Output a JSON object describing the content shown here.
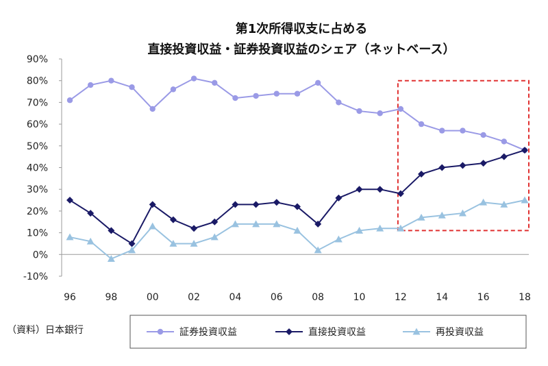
{
  "chart_data": {
    "type": "line",
    "title_lines": [
      "第1次所得収支に占める",
      "直接投資収益・証券投資収益のシェア（ネットベース）"
    ],
    "x": [
      "96",
      "97",
      "98",
      "99",
      "00",
      "01",
      "02",
      "03",
      "04",
      "05",
      "06",
      "07",
      "08",
      "09",
      "10",
      "11",
      "12",
      "13",
      "14",
      "15",
      "16",
      "17",
      "18"
    ],
    "x_tick_labels": [
      "96",
      "98",
      "00",
      "02",
      "04",
      "06",
      "08",
      "10",
      "12",
      "14",
      "16",
      "18"
    ],
    "y_tick_labels": [
      "90%",
      "80%",
      "70%",
      "60%",
      "50%",
      "40%",
      "30%",
      "20%",
      "10%",
      "0%",
      "-10%"
    ],
    "ylim": [
      -10,
      90
    ],
    "series": [
      {
        "name": "証券投資収益",
        "color": "#9a9ae6",
        "marker": "circle",
        "values": [
          71,
          78,
          80,
          77,
          67,
          76,
          81,
          79,
          72,
          73,
          74,
          74,
          79,
          70,
          66,
          65,
          67,
          60,
          57,
          57,
          55,
          52,
          48
        ]
      },
      {
        "name": "直接投資収益",
        "color": "#1a1a66",
        "marker": "diamond",
        "values": [
          25,
          19,
          11,
          5,
          23,
          16,
          12,
          15,
          23,
          23,
          24,
          22,
          14,
          26,
          30,
          30,
          28,
          37,
          40,
          41,
          42,
          45,
          48
        ]
      },
      {
        "name": "再投資収益",
        "color": "#99c2e0",
        "marker": "triangle",
        "values": [
          8,
          6,
          -2,
          2,
          13,
          5,
          5,
          8,
          14,
          14,
          14,
          11,
          2,
          7,
          11,
          12,
          12,
          17,
          18,
          19,
          24,
          23,
          25
        ]
      }
    ],
    "highlight_box": {
      "x_from": "12",
      "x_to": "18",
      "y_from": 11,
      "y_to": 80,
      "color": "#e03030",
      "style": "dashed"
    },
    "source": "（資料）日本銀行",
    "legend_placement": "bottom",
    "grid": false
  }
}
